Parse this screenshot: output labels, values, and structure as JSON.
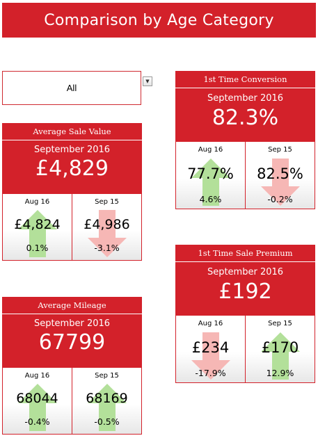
{
  "header": {
    "title": "Comparison by Age Category"
  },
  "filter": {
    "selected": "All",
    "dropdown_icon": "chevron-down-icon"
  },
  "colors": {
    "header_red": "#d3212a",
    "arrow_up_green": "#b3e09a",
    "arrow_down_red": "#f6b7b5"
  },
  "cards": {
    "average_sale_value": {
      "title": "Average Sale Value",
      "period": "September 2016",
      "value": "£4,829",
      "comparisons": [
        {
          "label": "Aug 16",
          "value": "£4,824",
          "change": "0.1%",
          "direction": "up"
        },
        {
          "label": "Sep 15",
          "value": "£4,986",
          "change": "-3.1%",
          "direction": "down"
        }
      ]
    },
    "average_mileage": {
      "title": "Average Mileage",
      "period": "September 2016",
      "value": "67799",
      "comparisons": [
        {
          "label": "Aug 16",
          "value": "68044",
          "change": "-0.4%",
          "direction": "up"
        },
        {
          "label": "Sep 15",
          "value": "68169",
          "change": "-0.5%",
          "direction": "up"
        }
      ]
    },
    "first_time_conversion": {
      "title": "1st Time Conversion",
      "period": "September 2016",
      "value": "82.3%",
      "comparisons": [
        {
          "label": "Aug 16",
          "value": "77.7%",
          "change": "4.6%",
          "direction": "up"
        },
        {
          "label": "Sep 15",
          "value": "82.5%",
          "change": "-0.2%",
          "direction": "down"
        }
      ]
    },
    "first_time_sale_premium": {
      "title": "1st Time Sale Premium",
      "period": "September 2016",
      "value": "£192",
      "comparisons": [
        {
          "label": "Aug 16",
          "value": "£234",
          "change": "-17.9%",
          "direction": "down"
        },
        {
          "label": "Sep 15",
          "value": "£170",
          "change": "12.9%",
          "direction": "up"
        }
      ]
    }
  }
}
